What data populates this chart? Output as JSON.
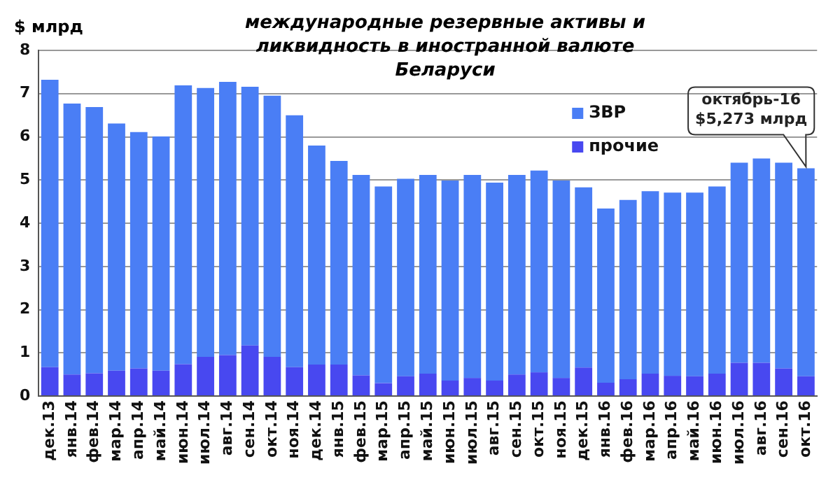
{
  "chart_data": {
    "type": "bar",
    "title": "международные резервные активы и ликвидность в иностранной валюте Беларуси",
    "ylabel": "$ млрд",
    "categories": [
      "дек.13",
      "янв.14",
      "фев.14",
      "мар.14",
      "апр.14",
      "май.14",
      "июн.14",
      "июл.14",
      "авг.14",
      "сен.14",
      "окт.14",
      "ноя.14",
      "дек.14",
      "янв.15",
      "фев.15",
      "мар.15",
      "апр.15",
      "май.15",
      "июн.15",
      "июл.15",
      "авг.15",
      "сен.15",
      "окт.15",
      "ноя.15",
      "дек.15",
      "янв.16",
      "фев.16",
      "мар.16",
      "апр.16",
      "май.16",
      "июн.16",
      "июл.16",
      "авг.16",
      "сен.16",
      "окт.16"
    ],
    "stacked": true,
    "series": [
      {
        "name": "прочие",
        "color": "#4848f0",
        "values": [
          0.67,
          0.5,
          0.53,
          0.59,
          0.64,
          0.59,
          0.74,
          0.91,
          0.95,
          1.17,
          0.91,
          0.67,
          0.73,
          0.73,
          0.48,
          0.3,
          0.46,
          0.52,
          0.36,
          0.42,
          0.36,
          0.5,
          0.55,
          0.42,
          0.66,
          0.31,
          0.39,
          0.52,
          0.47,
          0.46,
          0.52,
          0.77,
          0.77,
          0.64,
          0.46
        ]
      },
      {
        "name": "ЗВР",
        "color": "#4a7ef5",
        "values": [
          6.65,
          6.27,
          6.16,
          5.72,
          5.47,
          5.42,
          6.45,
          6.22,
          6.32,
          5.99,
          6.04,
          5.83,
          5.07,
          4.71,
          4.64,
          4.55,
          4.57,
          4.6,
          4.63,
          4.7,
          4.58,
          4.62,
          4.67,
          4.57,
          4.17,
          4.03,
          4.15,
          4.22,
          4.24,
          4.25,
          4.33,
          4.63,
          4.73,
          4.76,
          4.81
        ]
      }
    ],
    "ylim": [
      0,
      8
    ],
    "yticks": [
      0,
      1,
      2,
      3,
      4,
      5,
      6,
      7,
      8
    ],
    "grid": "y",
    "legend": "top right",
    "annotations": [
      {
        "text": "октябрь-16\n$5,273 млрд",
        "x": "окт.16",
        "y": 5.273
      }
    ]
  }
}
